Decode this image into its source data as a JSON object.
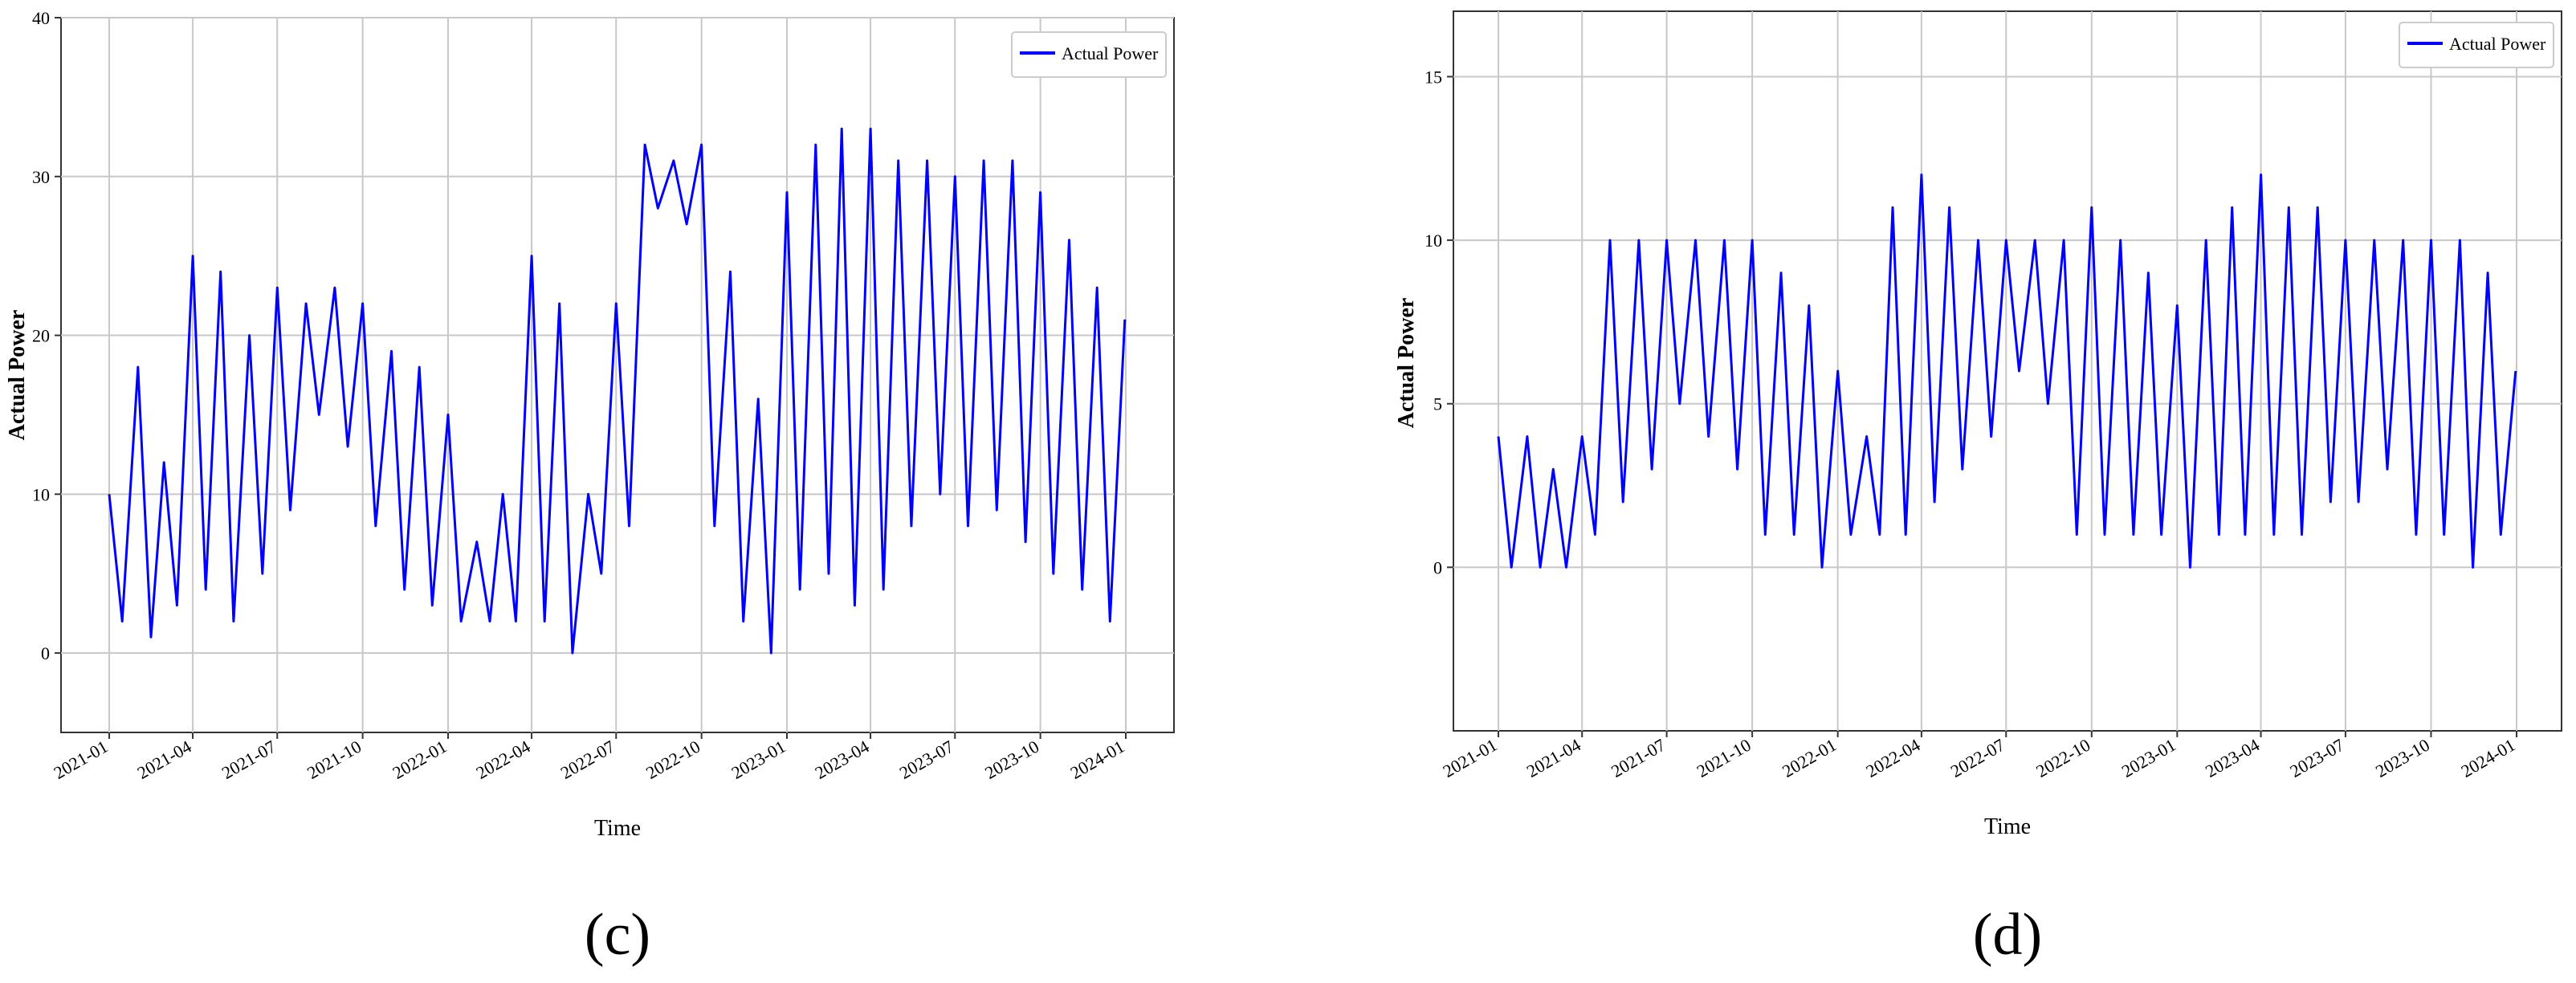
{
  "chart_data": [
    {
      "type": "line",
      "panel_label": "(c)",
      "xlabel": "Time",
      "ylabel": "Actual Power",
      "legend": "top-right",
      "grid": true,
      "series": [
        {
          "name": "Actual Power",
          "color": "#0000ff"
        }
      ],
      "x_ticks": [
        "2021-01",
        "2021-04",
        "2021-07",
        "2021-10",
        "2022-01",
        "2022-04",
        "2022-07",
        "2022-10",
        "2023-01",
        "2023-04",
        "2023-07",
        "2023-10",
        "2024-01"
      ],
      "y_ticks": [
        0,
        10,
        20,
        30,
        40
      ],
      "ylim": [
        -5,
        40
      ],
      "xlim": [
        "2021-01-01",
        "2024-01-01"
      ],
      "x": [
        "2021-01-01",
        "2021-01-15",
        "2021-02-01",
        "2021-02-15",
        "2021-03-01",
        "2021-03-15",
        "2021-04-01",
        "2021-04-15",
        "2021-05-01",
        "2021-05-15",
        "2021-06-01",
        "2021-06-15",
        "2021-07-01",
        "2021-07-15",
        "2021-08-01",
        "2021-08-15",
        "2021-09-01",
        "2021-09-15",
        "2021-10-01",
        "2021-10-15",
        "2021-11-01",
        "2021-11-15",
        "2021-12-01",
        "2021-12-15",
        "2022-01-01",
        "2022-01-15",
        "2022-02-01",
        "2022-02-15",
        "2022-03-01",
        "2022-03-15",
        "2022-04-01",
        "2022-04-15",
        "2022-05-01",
        "2022-05-15",
        "2022-06-01",
        "2022-06-15",
        "2022-07-01",
        "2022-07-15",
        "2022-08-01",
        "2022-08-15",
        "2022-09-01",
        "2022-09-15",
        "2022-10-01",
        "2022-10-15",
        "2022-11-01",
        "2022-11-15",
        "2022-12-01",
        "2022-12-15",
        "2023-01-01",
        "2023-01-15",
        "2023-02-01",
        "2023-02-15",
        "2023-03-01",
        "2023-03-15",
        "2023-04-01",
        "2023-04-15",
        "2023-05-01",
        "2023-05-15",
        "2023-06-01",
        "2023-06-15",
        "2023-07-01",
        "2023-07-15",
        "2023-08-01",
        "2023-08-15",
        "2023-09-01",
        "2023-09-15",
        "2023-10-01",
        "2023-10-15",
        "2023-11-01",
        "2023-11-15",
        "2023-12-01",
        "2023-12-15",
        "2023-12-31"
      ],
      "y": [
        10,
        2,
        18,
        1,
        12,
        3,
        25,
        4,
        24,
        2,
        20,
        5,
        23,
        9,
        22,
        15,
        23,
        13,
        22,
        8,
        19,
        4,
        18,
        3,
        15,
        2,
        7,
        2,
        10,
        2,
        25,
        2,
        22,
        0,
        10,
        5,
        22,
        8,
        32,
        28,
        31,
        27,
        32,
        8,
        24,
        2,
        16,
        0,
        29,
        4,
        32,
        5,
        33,
        3,
        33,
        4,
        31,
        8,
        31,
        10,
        30,
        8,
        31,
        9,
        31,
        7,
        29,
        5,
        26,
        4,
        23,
        2,
        21
      ]
    },
    {
      "type": "line",
      "panel_label": "(d)",
      "xlabel": "Time",
      "ylabel": "Actual Power",
      "legend": "top-right",
      "grid": true,
      "series": [
        {
          "name": "Actual Power",
          "color": "#0000ff"
        }
      ],
      "x_ticks": [
        "2021-01",
        "2021-04",
        "2021-07",
        "2021-10",
        "2022-01",
        "2022-04",
        "2022-07",
        "2022-10",
        "2023-01",
        "2023-04",
        "2023-07",
        "2023-10",
        "2024-01"
      ],
      "y_ticks": [
        0,
        5,
        10,
        15
      ],
      "ylim": [
        -5,
        17
      ],
      "xlim": [
        "2021-01-01",
        "2024-01-01"
      ],
      "x": [
        "2021-01-01",
        "2021-01-15",
        "2021-02-01",
        "2021-02-15",
        "2021-03-01",
        "2021-03-15",
        "2021-04-01",
        "2021-04-15",
        "2021-05-01",
        "2021-05-15",
        "2021-06-01",
        "2021-06-15",
        "2021-07-01",
        "2021-07-15",
        "2021-08-01",
        "2021-08-15",
        "2021-09-01",
        "2021-09-15",
        "2021-10-01",
        "2021-10-15",
        "2021-11-01",
        "2021-11-15",
        "2021-12-01",
        "2021-12-15",
        "2022-01-01",
        "2022-01-15",
        "2022-02-01",
        "2022-02-15",
        "2022-03-01",
        "2022-03-15",
        "2022-04-01",
        "2022-04-15",
        "2022-05-01",
        "2022-05-15",
        "2022-06-01",
        "2022-06-15",
        "2022-07-01",
        "2022-07-15",
        "2022-08-01",
        "2022-08-15",
        "2022-09-01",
        "2022-09-15",
        "2022-10-01",
        "2022-10-15",
        "2022-11-01",
        "2022-11-15",
        "2022-12-01",
        "2022-12-15",
        "2023-01-01",
        "2023-01-15",
        "2023-02-01",
        "2023-02-15",
        "2023-03-01",
        "2023-03-15",
        "2023-04-01",
        "2023-04-15",
        "2023-05-01",
        "2023-05-15",
        "2023-06-01",
        "2023-06-15",
        "2023-07-01",
        "2023-07-15",
        "2023-08-01",
        "2023-08-15",
        "2023-09-01",
        "2023-09-15",
        "2023-10-01",
        "2023-10-15",
        "2023-11-01",
        "2023-11-15",
        "2023-12-01",
        "2023-12-15",
        "2023-12-31"
      ],
      "y": [
        4,
        0,
        4,
        0,
        3,
        0,
        4,
        1,
        10,
        2,
        10,
        3,
        10,
        5,
        10,
        4,
        10,
        3,
        10,
        1,
        9,
        1,
        8,
        0,
        6,
        1,
        4,
        1,
        11,
        1,
        12,
        2,
        11,
        3,
        10,
        4,
        10,
        6,
        10,
        5,
        10,
        1,
        11,
        1,
        10,
        1,
        9,
        1,
        8,
        0,
        10,
        1,
        11,
        1,
        12,
        1,
        11,
        1,
        11,
        2,
        10,
        2,
        10,
        3,
        10,
        1,
        10,
        1,
        10,
        0,
        9,
        1,
        6
      ]
    }
  ]
}
